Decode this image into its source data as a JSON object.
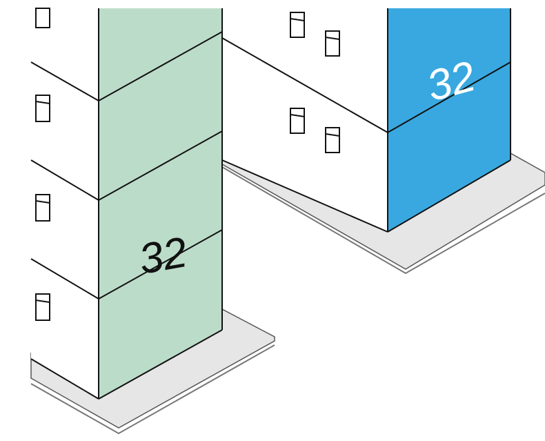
{
  "labels": {
    "left_building": "32",
    "right_building": "32"
  }
}
